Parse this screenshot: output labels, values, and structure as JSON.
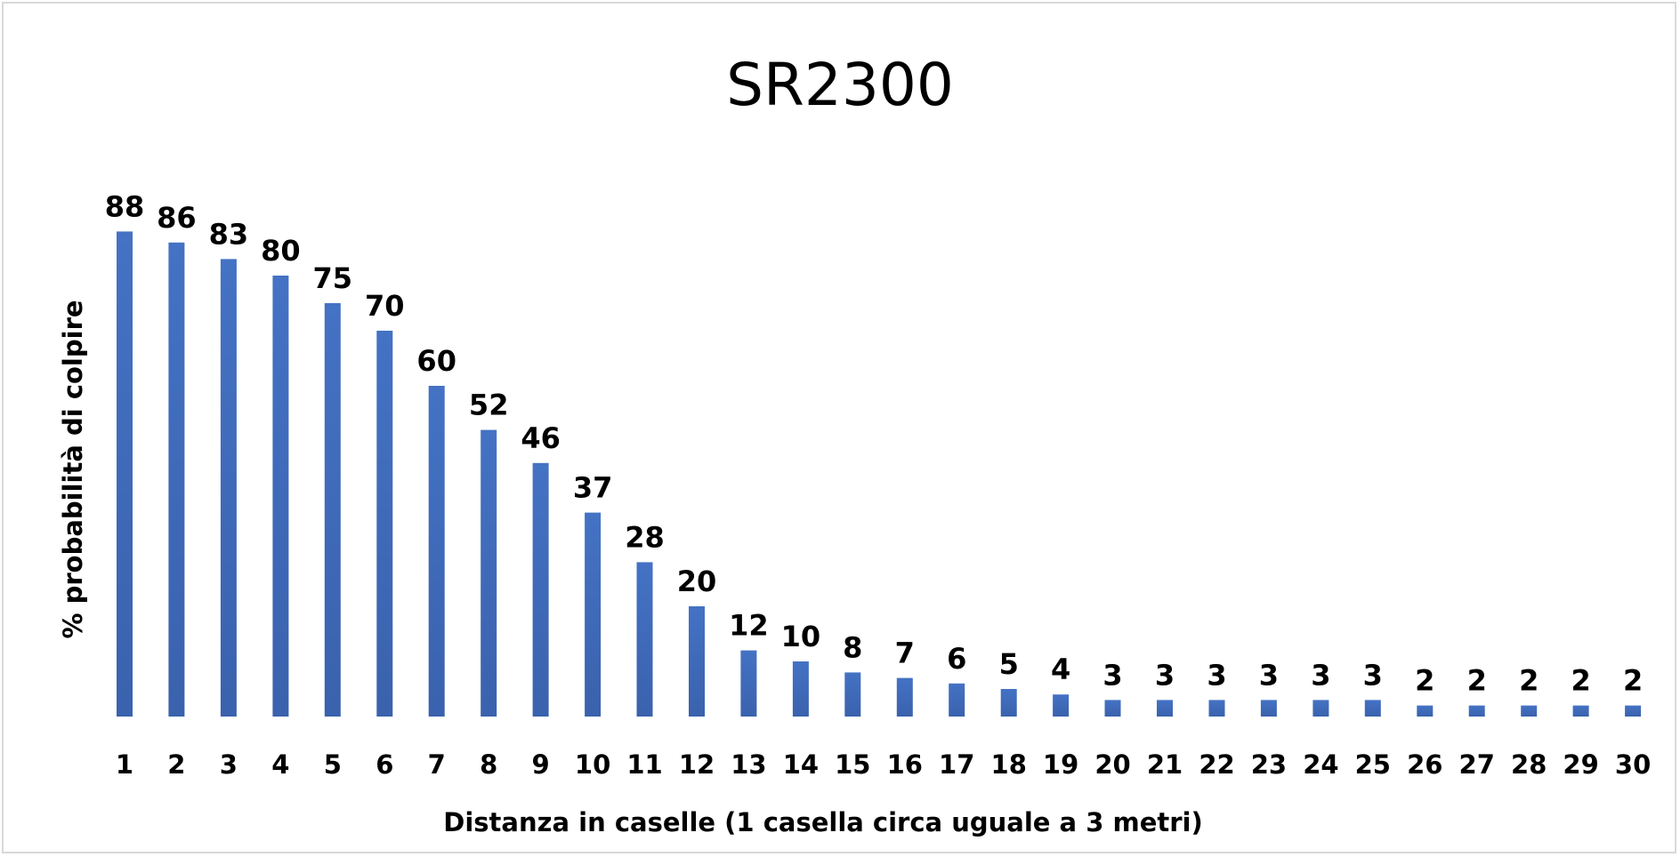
{
  "chart_data": {
    "type": "bar",
    "title": "SR2300",
    "xlabel": "Distanza in caselle (1 casella circa uguale a 3 metri)",
    "ylabel": "% probabilità di colpire",
    "categories": [
      "1",
      "2",
      "3",
      "4",
      "5",
      "6",
      "7",
      "8",
      "9",
      "10",
      "11",
      "12",
      "13",
      "14",
      "15",
      "16",
      "17",
      "18",
      "19",
      "20",
      "21",
      "22",
      "23",
      "24",
      "25",
      "26",
      "27",
      "28",
      "29",
      "30"
    ],
    "values": [
      88,
      86,
      83,
      80,
      75,
      70,
      60,
      52,
      46,
      37,
      28,
      20,
      12,
      10,
      8,
      7,
      6,
      5,
      4,
      3,
      3,
      3,
      3,
      3,
      3,
      2,
      2,
      2,
      2,
      2
    ],
    "ylim": [
      0,
      100
    ],
    "grid": false,
    "legend": "none",
    "bar_color": "#4472c4",
    "bar_color_dark": "#3a62ad"
  }
}
